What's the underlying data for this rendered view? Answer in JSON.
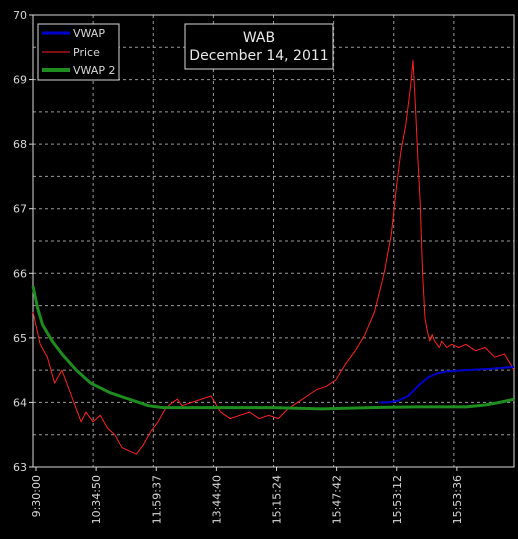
{
  "chart_data": {
    "type": "line",
    "title": "WAB",
    "subtitle": "December 14, 2011",
    "xlabel": "",
    "ylabel": "",
    "ylim": [
      63,
      70
    ],
    "yticks": [
      "63",
      "64",
      "65",
      "66",
      "67",
      "68",
      "69",
      "70"
    ],
    "xticks": [
      "9:30:00",
      "10:34:50",
      "11:59:37",
      "13:44:40",
      "15:15:24",
      "15:47:42",
      "15:53:12",
      "15:53:36"
    ],
    "grid": true,
    "legend_position": "top-left",
    "legend": [
      {
        "name": "VWAP",
        "color": "#0000cc"
      },
      {
        "name": "Price",
        "color": "#ff2020"
      },
      {
        "name": "VWAP 2",
        "color": "#1e8c1e"
      }
    ],
    "series": [
      {
        "name": "Price",
        "color": "#ff2020",
        "x": [
          0,
          0.015,
          0.03,
          0.045,
          0.06,
          0.075,
          0.09,
          0.1,
          0.11,
          0.125,
          0.14,
          0.155,
          0.17,
          0.185,
          0.2,
          0.215,
          0.23,
          0.245,
          0.26,
          0.275,
          0.29,
          0.3,
          0.31,
          0.33,
          0.35,
          0.37,
          0.39,
          0.41,
          0.43,
          0.45,
          0.47,
          0.49,
          0.51,
          0.53,
          0.55,
          0.57,
          0.59,
          0.61,
          0.63,
          0.65,
          0.67,
          0.69,
          0.71,
          0.73,
          0.745,
          0.755,
          0.765,
          0.775,
          0.785,
          0.79,
          0.795,
          0.8,
          0.805,
          0.81,
          0.815,
          0.82,
          0.825,
          0.83,
          0.835,
          0.84,
          0.845,
          0.85,
          0.86,
          0.87,
          0.885,
          0.9,
          0.92,
          0.94,
          0.96,
          0.98,
          1.0
        ],
        "values": [
          65.4,
          64.9,
          64.7,
          64.3,
          64.5,
          64.2,
          63.9,
          63.7,
          63.85,
          63.7,
          63.8,
          63.6,
          63.5,
          63.3,
          63.25,
          63.2,
          63.35,
          63.55,
          63.7,
          63.9,
          64.0,
          64.05,
          63.95,
          64.0,
          64.05,
          64.1,
          63.85,
          63.75,
          63.8,
          63.85,
          63.75,
          63.8,
          63.75,
          63.9,
          64.0,
          64.1,
          64.2,
          64.25,
          64.35,
          64.6,
          64.8,
          65.05,
          65.4,
          66.0,
          66.6,
          67.3,
          67.9,
          68.3,
          68.9,
          69.3,
          68.6,
          67.8,
          67.1,
          66.0,
          65.3,
          65.1,
          64.95,
          65.05,
          64.95,
          64.9,
          64.85,
          64.95,
          64.85,
          64.9,
          64.85,
          64.9,
          64.8,
          64.85,
          64.7,
          64.75,
          64.5
        ]
      },
      {
        "name": "VWAP",
        "color": "#0000cc",
        "x": [
          0.72,
          0.74,
          0.76,
          0.78,
          0.8,
          0.82,
          0.84,
          0.86,
          0.9,
          0.95,
          1.0
        ],
        "values": [
          64.0,
          64.0,
          64.03,
          64.1,
          64.25,
          64.38,
          64.45,
          64.48,
          64.5,
          64.52,
          64.55
        ]
      },
      {
        "name": "VWAP 2",
        "color": "#1e8c1e",
        "x": [
          0,
          0.01,
          0.02,
          0.04,
          0.06,
          0.09,
          0.12,
          0.16,
          0.2,
          0.24,
          0.27,
          0.3,
          0.4,
          0.5,
          0.6,
          0.7,
          0.8,
          0.9,
          0.94,
          0.97,
          1.0
        ],
        "values": [
          65.8,
          65.45,
          65.2,
          64.95,
          64.75,
          64.5,
          64.3,
          64.15,
          64.05,
          63.95,
          63.92,
          63.92,
          63.92,
          63.92,
          63.9,
          63.92,
          63.93,
          63.93,
          63.96,
          64.0,
          64.05
        ]
      }
    ]
  }
}
